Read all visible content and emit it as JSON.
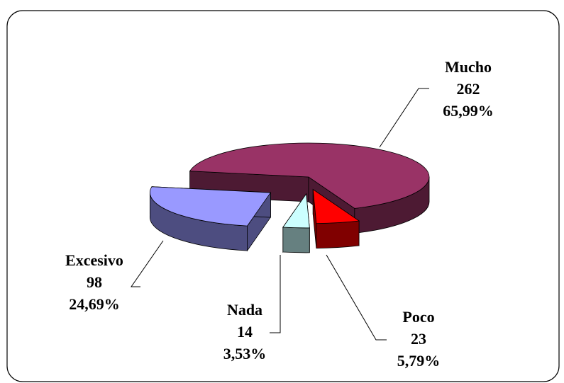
{
  "chart_data": {
    "type": "pie3d",
    "categories": [
      "Mucho",
      "Poco",
      "Nada",
      "Excesivo"
    ],
    "values": [
      262,
      23,
      14,
      98
    ],
    "percentages": [
      {
        "value": 65.99,
        "label": "65,99%"
      },
      {
        "value": 5.79,
        "label": "5,79%"
      },
      {
        "value": 3.53,
        "label": "3,53%"
      },
      {
        "value": 24.69,
        "label": "24,69%"
      }
    ],
    "colors": [
      "#993366",
      "#ff0000",
      "#ccffff",
      "#9999ff"
    ]
  }
}
